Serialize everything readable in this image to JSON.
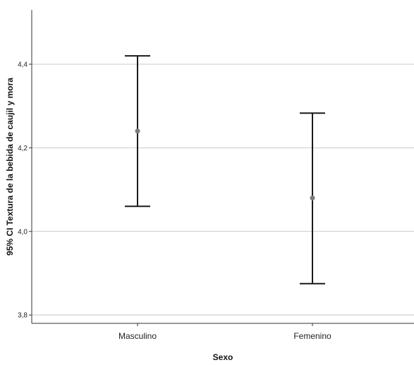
{
  "chart_data": {
    "type": "errorbar",
    "xlabel": "Sexo",
    "ylabel": "95% CI Textura de la bebida de caujil y mora",
    "categories": [
      "Masculino",
      "Femenino"
    ],
    "series": [
      {
        "mean": [
          4.24,
          4.08
        ],
        "lower": [
          4.06,
          3.875
        ],
        "upper": [
          4.42,
          4.283
        ]
      }
    ],
    "ylim": [
      3.78,
      4.53
    ],
    "yticks": [
      3.8,
      4.0,
      4.2,
      4.4
    ],
    "ytick_labels": [
      "3,8",
      "4,0",
      "4,2",
      "4,4"
    ],
    "grid": true,
    "colors": {
      "grid": "#c8c8c8",
      "axis": "#333333",
      "errorbar": "#1a1a1a",
      "point": "#7a7a7a"
    }
  }
}
